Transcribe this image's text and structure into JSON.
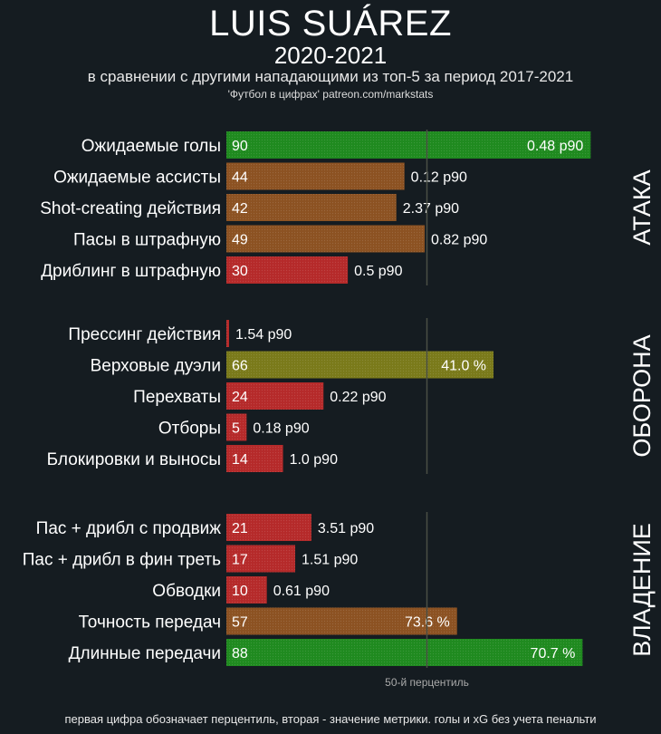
{
  "header": {
    "title": "LUIS SUÁREZ",
    "subtitle": "2020-2021",
    "description": "в сравнении с другими нападающими из топ-5 за период 2017-2021",
    "credit": "'Футбол в цифрах' patreon.com/markstats"
  },
  "footer": {
    "note": "первая цифра обозначает перцентиль, вторая - значение метрики. голы и xG без учета пенальти"
  },
  "colors": {
    "background": "#151c21",
    "high": "#1f8a1f",
    "mid_high": "#7a7a1a",
    "mid": "#8c5222",
    "low": "#b52a2a",
    "median_line": "#4a4f44"
  },
  "chart_data": {
    "type": "bar",
    "orientation": "horizontal",
    "xlim": [
      0,
      100
    ],
    "median_marker": 50,
    "median_label": "50-й перцентиль",
    "groups": [
      {
        "name": "АТАКА",
        "items": [
          {
            "label": "Ожидаемые голы",
            "percentile": 90,
            "value": "0.48 p90"
          },
          {
            "label": "Ожидаемые ассисты",
            "percentile": 44,
            "value": "0.12 p90"
          },
          {
            "label": "Shot-creating действия",
            "percentile": 42,
            "value": "2.37 p90"
          },
          {
            "label": "Пасы в штрафную",
            "percentile": 49,
            "value": "0.82 p90"
          },
          {
            "label": "Дриблинг в штрафную",
            "percentile": 30,
            "value": "0.5 p90"
          }
        ]
      },
      {
        "name": "ОБОРОНА",
        "items": [
          {
            "label": "Прессинг действия",
            "percentile": 0,
            "value": "1.54 p90"
          },
          {
            "label": "Верховые дуэли",
            "percentile": 66,
            "value": "41.0 %"
          },
          {
            "label": "Перехваты",
            "percentile": 24,
            "value": "0.22 p90"
          },
          {
            "label": "Отборы",
            "percentile": 5,
            "value": "0.18 p90"
          },
          {
            "label": "Блокировки и выносы",
            "percentile": 14,
            "value": "1.0 p90"
          }
        ]
      },
      {
        "name": "ВЛАДЕНИЕ",
        "items": [
          {
            "label": "Пас + дрибл с продвиж",
            "percentile": 21,
            "value": "3.51 p90"
          },
          {
            "label": "Пас + дрибл в фин треть",
            "percentile": 17,
            "value": "1.51 p90"
          },
          {
            "label": "Обводки",
            "percentile": 10,
            "value": "0.61 p90"
          },
          {
            "label": "Точность передач",
            "percentile": 57,
            "value": "73.6 %"
          },
          {
            "label": "Длинные передачи",
            "percentile": 88,
            "value": "70.7 %"
          }
        ]
      }
    ]
  }
}
